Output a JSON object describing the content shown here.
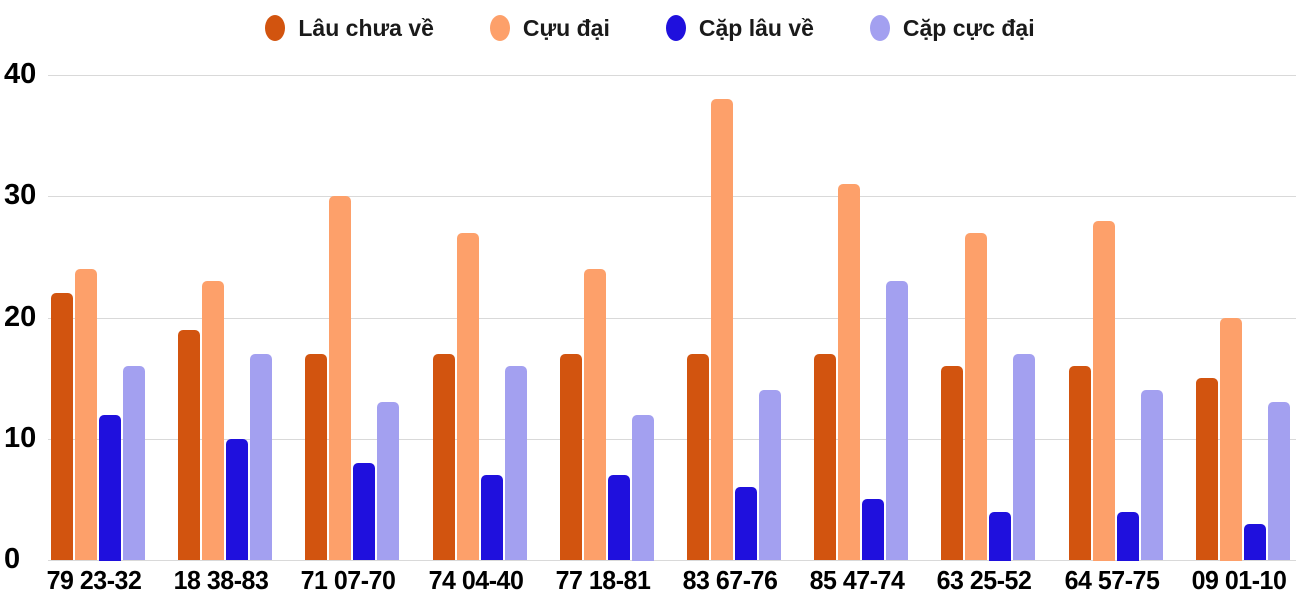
{
  "chart_data": {
    "type": "bar",
    "title": "",
    "categories": [
      "79 23-32",
      "18 38-83",
      "71 07-70",
      "74 04-40",
      "77 18-81",
      "83 67-76",
      "85 47-74",
      "63 25-52",
      "64 57-75",
      "09 01-10"
    ],
    "series": [
      {
        "name": "Lâu chưa về",
        "color": "#d2540f",
        "values": [
          22,
          19,
          17,
          17,
          17,
          17,
          17,
          16,
          16,
          15
        ]
      },
      {
        "name": "Cựu đại",
        "color": "#fda06a",
        "values": [
          24,
          23,
          30,
          27,
          24,
          38,
          31,
          27,
          28,
          20
        ]
      },
      {
        "name": "Cặp lâu về",
        "color": "#1f10dd",
        "values": [
          12,
          10,
          8,
          7,
          7,
          6,
          5,
          4,
          4,
          3
        ]
      },
      {
        "name": "Cặp cực đại",
        "color": "#a3a0f0",
        "values": [
          16,
          17,
          13,
          16,
          12,
          14,
          23,
          17,
          14,
          13
        ]
      }
    ],
    "xlabel": "",
    "ylabel": "",
    "ylim": [
      0,
      40
    ],
    "yticks": [
      0,
      10,
      20,
      30,
      40
    ],
    "grid": true,
    "legend_position": "top",
    "background_color": "#ffffff",
    "gridline_color": "#d9d9d9",
    "axis_text_color": "#000000"
  }
}
